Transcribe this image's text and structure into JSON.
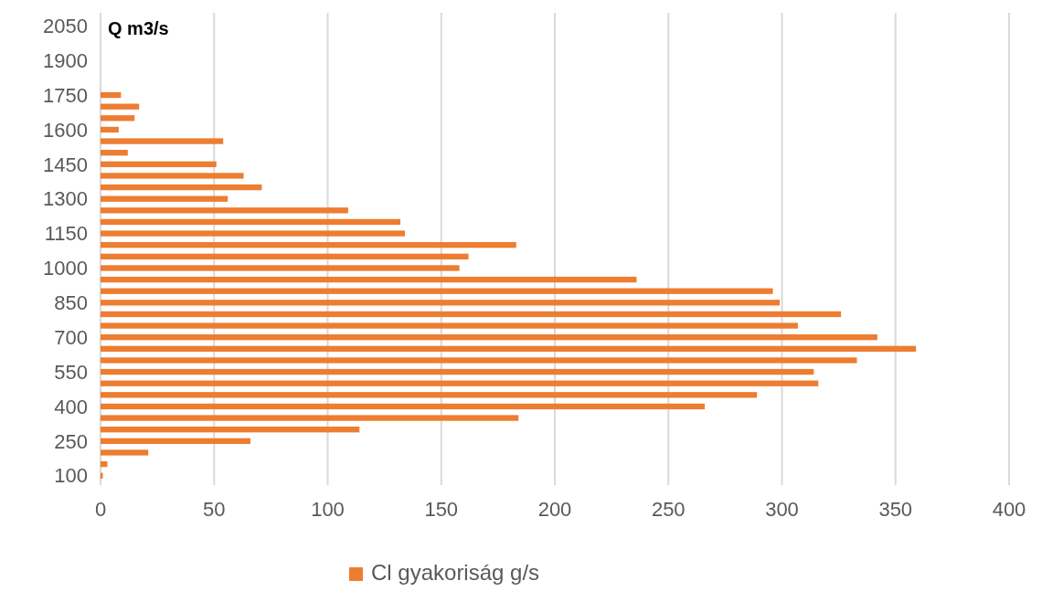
{
  "chart_data": {
    "type": "bar",
    "orientation": "horizontal",
    "ylabel": "Q m3/s",
    "categories": [
      "2050",
      null,
      null,
      "1900",
      null,
      null,
      "1750",
      null,
      null,
      "1600",
      null,
      null,
      "1450",
      null,
      null,
      "1300",
      null,
      null,
      "1150",
      null,
      null,
      "1000",
      null,
      null,
      "850",
      null,
      null,
      "700",
      null,
      null,
      "550",
      null,
      null,
      "400",
      null,
      null,
      "250",
      null,
      null,
      "100"
    ],
    "series": [
      {
        "name": "Cl gyakoriság g/s",
        "color": "#ed7d31",
        "values": [
          null,
          null,
          null,
          null,
          null,
          null,
          9,
          17,
          15,
          8,
          54,
          12,
          51,
          63,
          71,
          56,
          109,
          132,
          134,
          183,
          162,
          158,
          236,
          296,
          299,
          326,
          307,
          342,
          359,
          333,
          314,
          316,
          289,
          266,
          184,
          114,
          66,
          21,
          3,
          1
        ]
      }
    ],
    "xlim": [
      0,
      400
    ],
    "xticks": [
      0,
      50,
      100,
      150,
      200,
      250,
      300,
      350,
      400
    ],
    "grid": "x",
    "legend": "bottom"
  }
}
